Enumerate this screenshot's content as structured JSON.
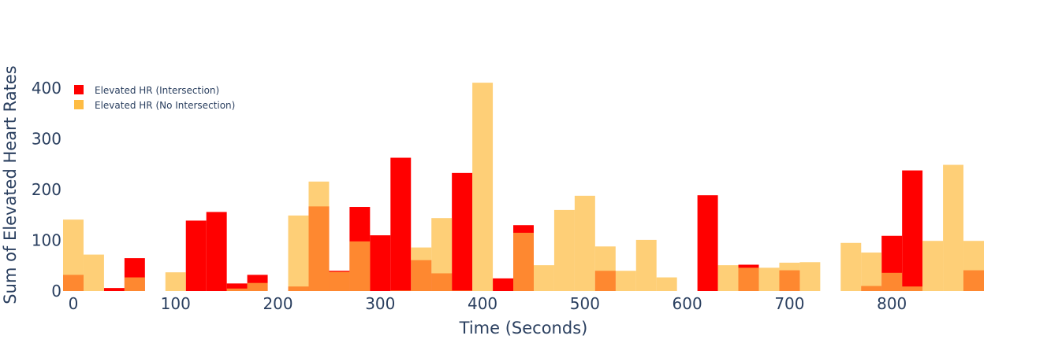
{
  "chart_data": {
    "type": "bar",
    "barmode": "overlay",
    "xlabel": "Time (Seconds)",
    "ylabel": "Sum of Elevated Heart Rates",
    "xlim": [
      -10,
      890
    ],
    "ylim": [
      0,
      450
    ],
    "bin_width": 20,
    "x_ticks": [
      0,
      100,
      200,
      300,
      400,
      500,
      600,
      700,
      800
    ],
    "y_ticks": [
      0,
      100,
      200,
      300,
      400
    ],
    "legend_position": "top-left",
    "grid": false,
    "series": [
      {
        "name": "Elevated HR (Intersection)",
        "color": "#ff0000",
        "opacity": 1.0,
        "x": [
          0,
          40,
          60,
          120,
          140,
          160,
          180,
          220,
          240,
          260,
          280,
          300,
          320,
          340,
          360,
          380,
          420,
          440,
          520,
          620,
          660,
          700,
          780,
          800,
          820,
          880
        ],
        "values": [
          32,
          6,
          65,
          139,
          156,
          15,
          32,
          9,
          167,
          40,
          166,
          110,
          263,
          61,
          35,
          233,
          25,
          130,
          40,
          189,
          52,
          41,
          10,
          109,
          238,
          41
        ]
      },
      {
        "name": "Elevated HR (No Intersection)",
        "color": "#febc43",
        "opacity": 0.97,
        "x": [
          0,
          20,
          60,
          100,
          160,
          180,
          220,
          240,
          260,
          280,
          320,
          340,
          360,
          380,
          400,
          440,
          460,
          480,
          500,
          520,
          540,
          560,
          580,
          640,
          660,
          680,
          700,
          720,
          760,
          780,
          800,
          820,
          840,
          860,
          880
        ],
        "values": [
          141,
          72,
          27,
          37,
          5,
          16,
          149,
          216,
          38,
          98,
          1,
          86,
          144,
          1,
          411,
          115,
          51,
          160,
          188,
          88,
          40,
          101,
          27,
          51,
          46,
          46,
          56,
          57,
          95,
          76,
          36,
          9,
          99,
          249,
          99
        ]
      }
    ]
  }
}
